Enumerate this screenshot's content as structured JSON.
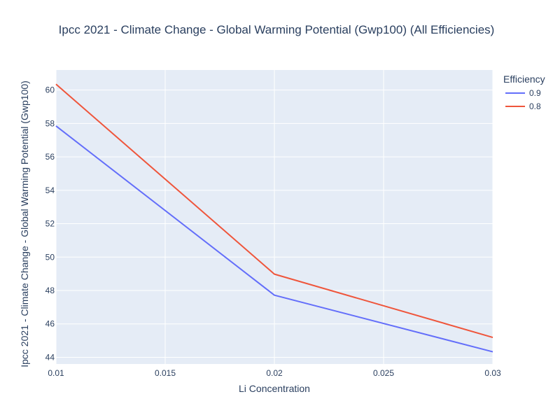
{
  "chart_data": {
    "type": "line",
    "title": "Ipcc 2021 - Climate Change - Global Warming Potential (Gwp100) (All Efficiencies)",
    "xlabel": "Li Concentration",
    "ylabel": "Ipcc 2021 - Climate Change - Global Warming Potential (Gwp100)",
    "x": [
      0.01,
      0.02,
      0.03
    ],
    "xlim": [
      0.01,
      0.03
    ],
    "ylim": [
      43.6,
      61.2
    ],
    "x_ticks": [
      0.01,
      0.015,
      0.02,
      0.025,
      0.03
    ],
    "x_tick_labels": [
      "0.01",
      "0.015",
      "0.02",
      "0.025",
      "0.03"
    ],
    "y_ticks": [
      44,
      46,
      48,
      50,
      52,
      54,
      56,
      58,
      60
    ],
    "y_tick_labels": [
      "44",
      "46",
      "48",
      "50",
      "52",
      "54",
      "56",
      "58",
      "60"
    ],
    "grid": true,
    "legend_title": "Efficiency",
    "legend_position": "top-right",
    "plot_background": "#e5ecf6",
    "series": [
      {
        "name": "0.9",
        "color": "#636efa",
        "values": [
          57.85,
          47.72,
          44.33
        ]
      },
      {
        "name": "0.8",
        "color": "#ef553b",
        "values": [
          60.35,
          48.98,
          45.19
        ]
      }
    ]
  }
}
